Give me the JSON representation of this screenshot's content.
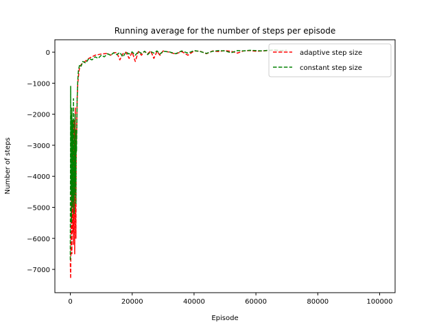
{
  "chart_data": {
    "type": "line",
    "title": "Running average for the number of steps per episode",
    "xlabel": "Episode",
    "ylabel": "Number of steps",
    "xlim": [
      -5000,
      105000
    ],
    "ylim": [
      -7750,
      400
    ],
    "xticks": [
      0,
      20000,
      40000,
      60000,
      80000,
      100000
    ],
    "xtick_labels": [
      "0",
      "20000",
      "40000",
      "60000",
      "80000",
      "100000"
    ],
    "yticks": [
      -7000,
      -6000,
      -5000,
      -4000,
      -3000,
      -2000,
      -1000,
      0
    ],
    "ytick_labels": [
      "−7000",
      "−6000",
      "−5000",
      "−4000",
      "−3000",
      "−2000",
      "−1000",
      "0"
    ],
    "grid": false,
    "legend_position": "top-right",
    "series": [
      {
        "name": "adaptive step size",
        "color": "#ff0000",
        "dash": "dashed",
        "x": [
          0,
          100,
          200,
          300,
          400,
          500,
          600,
          700,
          800,
          900,
          1000,
          1100,
          1200,
          1300,
          1400,
          1500,
          1600,
          1700,
          1800,
          1900,
          2000,
          2200,
          2400,
          2600,
          2800,
          3000,
          3500,
          4000,
          5000,
          6000,
          7000,
          8000,
          9000,
          10000,
          11000,
          12000,
          13000,
          14000,
          15000,
          16000,
          17000,
          18000,
          19000,
          20000,
          21000,
          22000,
          23000,
          24000,
          25000,
          26000,
          27000,
          28000,
          29000,
          30000,
          32000,
          34000,
          36000,
          38000,
          40000,
          42000,
          44000,
          46000,
          48000,
          50000,
          52000,
          54000,
          56000,
          58000,
          60000,
          62000,
          64000,
          66000,
          68000,
          70000
        ],
        "y": [
          -6800,
          -7300,
          -6200,
          -5000,
          -3800,
          -6500,
          -4200,
          -2500,
          -5800,
          -3000,
          -6200,
          -4800,
          -2200,
          -4000,
          -6500,
          -3500,
          -1800,
          -4500,
          -6000,
          -3000,
          -2800,
          -1500,
          -1000,
          -800,
          -600,
          -500,
          -400,
          -350,
          -280,
          -200,
          -150,
          -100,
          -80,
          -60,
          -50,
          -40,
          -100,
          -20,
          -10,
          -250,
          -50,
          0,
          -200,
          0,
          -300,
          20,
          -100,
          30,
          -50,
          40,
          -200,
          20,
          -100,
          40,
          0,
          -60,
          20,
          -100,
          40,
          30,
          -50,
          40,
          20,
          50,
          30,
          -30,
          40,
          50,
          30,
          40,
          50,
          60,
          40,
          60
        ]
      },
      {
        "name": "constant step size",
        "color": "#008000",
        "dash": "dashed",
        "x": [
          0,
          100,
          200,
          300,
          400,
          500,
          600,
          700,
          800,
          900,
          1000,
          1100,
          1200,
          1300,
          1400,
          1500,
          1600,
          1700,
          1800,
          1900,
          2000,
          2200,
          2400,
          2600,
          2800,
          3000,
          3500,
          4000,
          5000,
          6000,
          7000,
          8000,
          9000,
          10000,
          11000,
          12000,
          13000,
          14000,
          15000,
          16000,
          17000,
          18000,
          19000,
          20000,
          21000,
          22000,
          23000,
          24000,
          25000,
          26000,
          27000,
          28000,
          29000,
          30000,
          32000,
          34000,
          36000,
          38000,
          40000,
          42000,
          44000,
          46000,
          48000,
          50000,
          52000,
          54000,
          56000,
          58000,
          60000,
          62000,
          64000,
          66000,
          68000,
          70000
        ],
        "y": [
          -6700,
          -1100,
          -4500,
          -2000,
          -5500,
          -1800,
          -3500,
          -5000,
          -2200,
          -4800,
          -1500,
          -3800,
          -5200,
          -2800,
          -4600,
          -2000,
          -4200,
          -3000,
          -4900,
          -2500,
          -3200,
          -1500,
          -900,
          -600,
          -500,
          -400,
          -450,
          -300,
          -350,
          -200,
          -250,
          -150,
          -200,
          -100,
          -150,
          -50,
          -100,
          -20,
          -80,
          -10,
          -150,
          0,
          -60,
          10,
          -100,
          20,
          -40,
          30,
          -80,
          20,
          -30,
          40,
          -60,
          30,
          10,
          -50,
          40,
          -30,
          50,
          20,
          -40,
          30,
          50,
          40,
          -20,
          50,
          40,
          60,
          50,
          40,
          60,
          70,
          50,
          60
        ]
      }
    ]
  }
}
